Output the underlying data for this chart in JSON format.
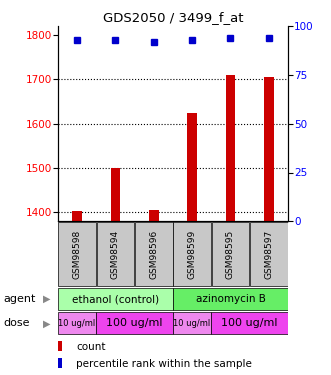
{
  "title": "GDS2050 / 3499_f_at",
  "samples": [
    "GSM98598",
    "GSM98594",
    "GSM98596",
    "GSM98599",
    "GSM98595",
    "GSM98597"
  ],
  "bar_values": [
    1403,
    1500,
    1405,
    1625,
    1710,
    1705
  ],
  "percentile_values": [
    93,
    93,
    92,
    93,
    94,
    94
  ],
  "ylim_left": [
    1380,
    1820
  ],
  "ylim_right": [
    0,
    100
  ],
  "yticks_left": [
    1400,
    1500,
    1600,
    1700,
    1800
  ],
  "yticks_right": [
    0,
    25,
    50,
    75,
    100
  ],
  "bar_color": "#cc0000",
  "dot_color": "#0000cc",
  "agent_groups": [
    {
      "label": "ethanol (control)",
      "color": "#aaffaa",
      "span": [
        0,
        3
      ]
    },
    {
      "label": "azinomycin B",
      "color": "#66ee66",
      "span": [
        3,
        6
      ]
    }
  ],
  "dose_groups": [
    {
      "label": "10 ug/ml",
      "color": "#ee88ee",
      "span": [
        0,
        1
      ],
      "fontsize": 6
    },
    {
      "label": "100 ug/ml",
      "color": "#ee44ee",
      "span": [
        1,
        3
      ],
      "fontsize": 8
    },
    {
      "label": "10 ug/ml",
      "color": "#ee88ee",
      "span": [
        3,
        4
      ],
      "fontsize": 6
    },
    {
      "label": "100 ug/ml",
      "color": "#ee44ee",
      "span": [
        4,
        6
      ],
      "fontsize": 8
    }
  ],
  "legend_items": [
    {
      "color": "#cc0000",
      "label": "count"
    },
    {
      "color": "#0000cc",
      "label": "percentile rank within the sample"
    }
  ],
  "label_bg": "#c8c8c8"
}
